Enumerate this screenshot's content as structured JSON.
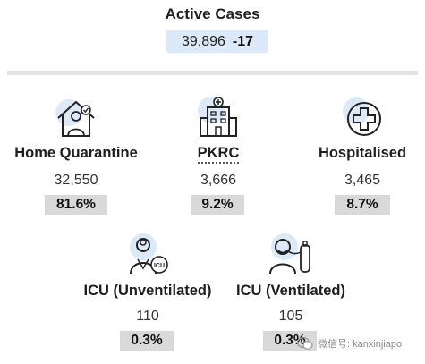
{
  "header": {
    "title": "Active Cases",
    "count": "39,896",
    "change": "-17"
  },
  "categories": [
    {
      "label": "Home Quarantine",
      "count": "32,550",
      "percent": "81.6%",
      "icon": "house-person-icon"
    },
    {
      "label": "PKRC",
      "count": "3,666",
      "percent": "9.2%",
      "icon": "hospital-building-icon"
    },
    {
      "label": "Hospitalised",
      "count": "3,465",
      "percent": "8.7%",
      "icon": "medical-cross-icon"
    },
    {
      "label": "ICU (Unventilated)",
      "count": "110",
      "percent": "0.3%",
      "icon": "doctor-icu-icon"
    },
    {
      "label": "ICU (Ventilated)",
      "count": "105",
      "percent": "0.3%",
      "icon": "patient-ventilator-icon"
    }
  ],
  "watermark": {
    "text": "微信号: kanxinjiapo"
  },
  "colors": {
    "summary_bg": "#dce9f8",
    "percent_bg": "#d9d9d9",
    "icon_circle": "#dce9f8"
  }
}
